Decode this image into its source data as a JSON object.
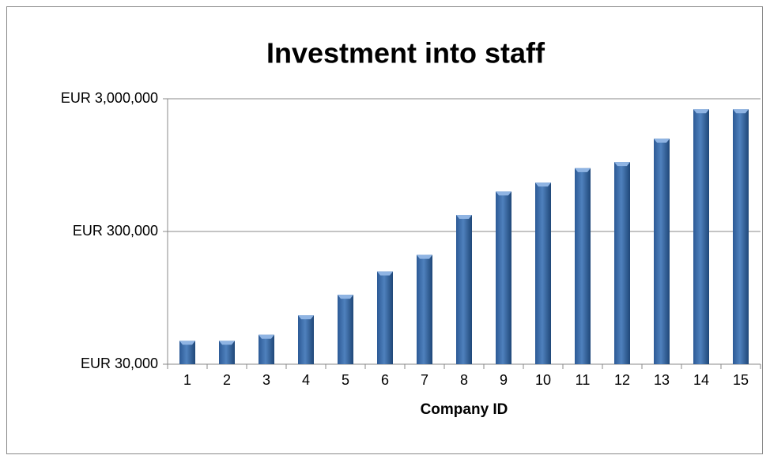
{
  "chart_data": {
    "type": "bar",
    "title": "Investment into staff",
    "x_label": "Company ID",
    "categories": [
      "1",
      "2",
      "3",
      "4",
      "5",
      "6",
      "7",
      "8",
      "9",
      "10",
      "11",
      "12",
      "13",
      "14",
      "15"
    ],
    "values": [
      45000,
      45000,
      50000,
      70000,
      100000,
      150000,
      200000,
      400000,
      600000,
      700000,
      900000,
      1000000,
      1500000,
      2500000,
      2500000
    ],
    "color": "#4f81bd",
    "log_scale": true,
    "grid": true,
    "ylim": [
      30000,
      3000000
    ],
    "yticks": [
      {
        "value": 30000,
        "label": "EUR 30,000"
      },
      {
        "value": 300000,
        "label": "EUR 300,000"
      },
      {
        "value": 3000000,
        "label": "EUR 3,000,000"
      }
    ]
  }
}
